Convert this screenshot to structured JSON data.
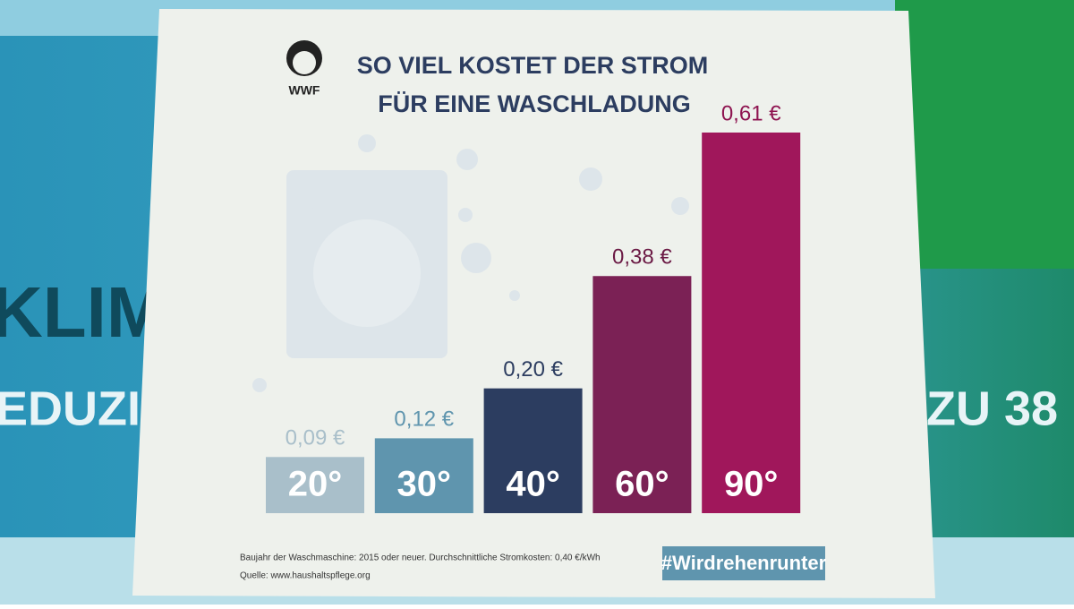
{
  "chart_data": {
    "type": "bar",
    "logo": "WWF",
    "title": "SO VIEL KOSTET DER STROM",
    "subtitle": "FÜR EINE WASCHLADUNG",
    "categories": [
      "20°",
      "30°",
      "40°",
      "60°",
      "90°"
    ],
    "values": [
      0.09,
      0.12,
      0.2,
      0.38,
      0.61
    ],
    "value_labels": [
      "0,09 €",
      "0,12 €",
      "0,20 €",
      "0,38 €",
      "0,61 €"
    ],
    "colors": [
      "#a9bfca",
      "#5f95ae",
      "#2c3d60",
      "#7b2155",
      "#a0175b"
    ],
    "label_colors": [
      "#a9bfca",
      "#5f95ae",
      "#2c3d60",
      "#6b1a45",
      "#8e1450"
    ],
    "note": "Baujahr der Waschmaschine: 2015 oder neuer. Durchschnittliche Stromkosten: 0,40 €/kWh",
    "source": "Quelle: www.haushaltspflege.org",
    "hashtag": "#Wirdrehenrunter"
  },
  "background": {
    "texts": [
      "KLIM",
      "EDUZI",
      "ZU 38"
    ]
  }
}
